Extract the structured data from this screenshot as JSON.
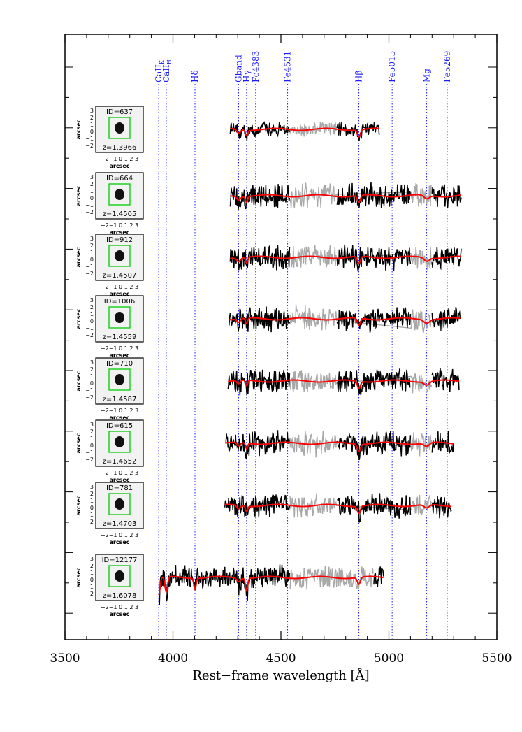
{
  "chart_data": {
    "type": "line",
    "title": "",
    "xlabel": "Rest−frame wavelength [Å]",
    "ylabel": "",
    "xlim": [
      3500,
      5500
    ],
    "x_ticks": [
      3500,
      4000,
      4500,
      5000,
      5500
    ],
    "grid": false,
    "colors": {
      "observed": "#000000",
      "masked": "#a8a8a8",
      "model": "#ff0000",
      "lines": "#1a1aff",
      "cutout_box": "#00cc00"
    },
    "spectral_lines": [
      {
        "name": "CaII",
        "sub": "K",
        "wavelength": 3934
      },
      {
        "name": "CaII",
        "sub": "H",
        "wavelength": 3969
      },
      {
        "name": "Hδ",
        "sub": "",
        "wavelength": 4102
      },
      {
        "name": "Gband",
        "sub": "",
        "wavelength": 4304
      },
      {
        "name": "Hγ",
        "sub": "",
        "wavelength": 4341
      },
      {
        "name": "Fe4383",
        "sub": "",
        "wavelength": 4383
      },
      {
        "name": "Fe4531",
        "sub": "",
        "wavelength": 4531
      },
      {
        "name": "Hβ",
        "sub": "",
        "wavelength": 4861
      },
      {
        "name": "Fe5015",
        "sub": "",
        "wavelength": 5015
      },
      {
        "name": "Mg",
        "sub": "",
        "wavelength": 5175
      },
      {
        "name": "Fe5269",
        "sub": "",
        "wavelength": 5270
      }
    ],
    "series": [
      {
        "id": "637",
        "redshift": "1.3966",
        "wave_min": 4265,
        "wave_max": 4955
      },
      {
        "id": "664",
        "redshift": "1.4505",
        "wave_min": 4265,
        "wave_max": 5335
      },
      {
        "id": "912",
        "redshift": "1.4507",
        "wave_min": 4265,
        "wave_max": 5335
      },
      {
        "id": "1006",
        "redshift": "1.4559",
        "wave_min": 4260,
        "wave_max": 5330
      },
      {
        "id": "710",
        "redshift": "1.4587",
        "wave_min": 4255,
        "wave_max": 5325
      },
      {
        "id": "615",
        "redshift": "1.4652",
        "wave_min": 4245,
        "wave_max": 5300
      },
      {
        "id": "781",
        "redshift": "1.4703",
        "wave_min": 4240,
        "wave_max": 5290
      },
      {
        "id": "12177",
        "redshift": "1.6078",
        "wave_min": 3935,
        "wave_max": 4975
      }
    ]
  },
  "cutout": {
    "id_prefix": "ID=",
    "z_prefix": "z=",
    "axis_label": "arcsec",
    "y_ticks": [
      "3",
      "2",
      "1",
      "0",
      "−1",
      "−2"
    ],
    "x_ticks_text": "−2−1 0  1  2  3"
  }
}
